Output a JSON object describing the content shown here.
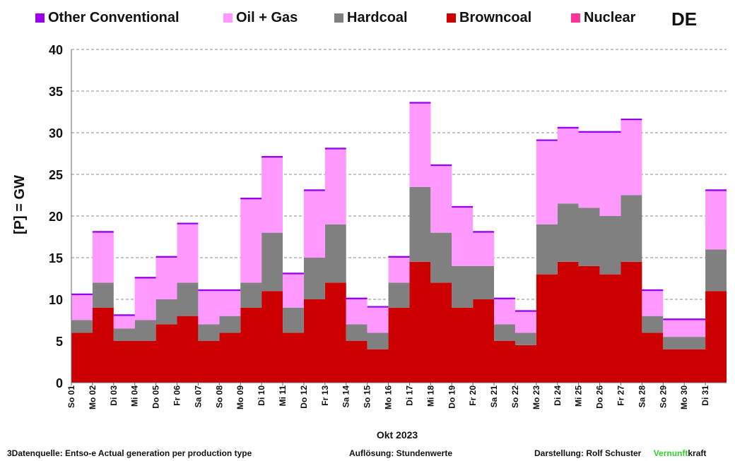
{
  "legend": [
    {
      "label": "Other Conventional",
      "color": "#9900ee"
    },
    {
      "label": "Oil + Gas",
      "color": "#ff99ff"
    },
    {
      "label": "Hardcoal",
      "color": "#808080"
    },
    {
      "label": "Browncoal",
      "color": "#cc0000"
    },
    {
      "label": "Nuclear",
      "color": "#ff3399"
    }
  ],
  "region": "DE",
  "footer": {
    "source": "3Datenquelle: Entso-e  Actual generation per production type",
    "resolution": "Auflösung: Stundenwerte",
    "author": "Darstellung:  Rolf Schuster",
    "brand_highlight": "Vernunft",
    "brand_rest": "kraft"
  },
  "chart_data": {
    "type": "area",
    "stacked": true,
    "title": "",
    "xlabel": "Okt 2023",
    "ylabel": "[P] = GW",
    "ylim": [
      0,
      40
    ],
    "yticks": [
      0,
      5,
      10,
      15,
      20,
      25,
      30,
      35,
      40
    ],
    "grid": true,
    "legend_position": "top",
    "x": [
      "So 01",
      "Mo 02",
      "Di 03",
      "Mi 04",
      "Do 05",
      "Fr 06",
      "Sa 07",
      "So 08",
      "Mo 09",
      "Di 10",
      "Mi 11",
      "Do 12",
      "Fr 13",
      "Sa 14",
      "So 15",
      "Mo 16",
      "Di 17",
      "Mi 18",
      "Do 19",
      "Fr 20",
      "Sa 21",
      "So 22",
      "Mo 23",
      "Di 24",
      "Mi 25",
      "Do 26",
      "Fr 27",
      "Sa 28",
      "So 29",
      "Mo 30",
      "Di 31"
    ],
    "series": [
      {
        "name": "Browncoal",
        "color": "#cc0000",
        "values": [
          6,
          9,
          5,
          5,
          7,
          8,
          5,
          6,
          9,
          11,
          6,
          10,
          12,
          5,
          4,
          9,
          14.5,
          12,
          9,
          10,
          5,
          4.5,
          13,
          14.5,
          14,
          13,
          14.5,
          6,
          4,
          4,
          11
        ]
      },
      {
        "name": "Hardcoal",
        "color": "#808080",
        "values": [
          1.5,
          3,
          1.5,
          2.5,
          3,
          4,
          2,
          2,
          3,
          7,
          3,
          5,
          7,
          2,
          2,
          3,
          9,
          6,
          5,
          4,
          2,
          1.5,
          6,
          7,
          7,
          7,
          8,
          2,
          1.5,
          1.5,
          5
        ]
      },
      {
        "name": "Oil + Gas",
        "color": "#ff99ff",
        "values": [
          3,
          6,
          1.5,
          5,
          5,
          7,
          4,
          3,
          10,
          9,
          4,
          8,
          9,
          3,
          3,
          3,
          10,
          8,
          7,
          4,
          3,
          2.5,
          10,
          9,
          9,
          10,
          9,
          3,
          2,
          2,
          7
        ]
      },
      {
        "name": "Other Conventional",
        "color": "#9900ee",
        "values": [
          0.2,
          0.2,
          0.2,
          0.2,
          0.2,
          0.2,
          0.2,
          0.2,
          0.2,
          0.2,
          0.2,
          0.2,
          0.2,
          0.2,
          0.2,
          0.2,
          0.2,
          0.2,
          0.2,
          0.2,
          0.2,
          0.2,
          0.2,
          0.2,
          0.2,
          0.2,
          0.2,
          0.2,
          0.2,
          0.2,
          0.2
        ]
      },
      {
        "name": "Nuclear",
        "color": "#ff3399",
        "values": [
          0,
          0,
          0,
          0,
          0,
          0,
          0,
          0,
          0,
          0,
          0,
          0,
          0,
          0,
          0,
          0,
          0,
          0,
          0,
          0,
          0,
          0,
          0,
          0,
          0,
          0,
          0,
          0,
          0,
          0,
          0
        ]
      }
    ]
  }
}
